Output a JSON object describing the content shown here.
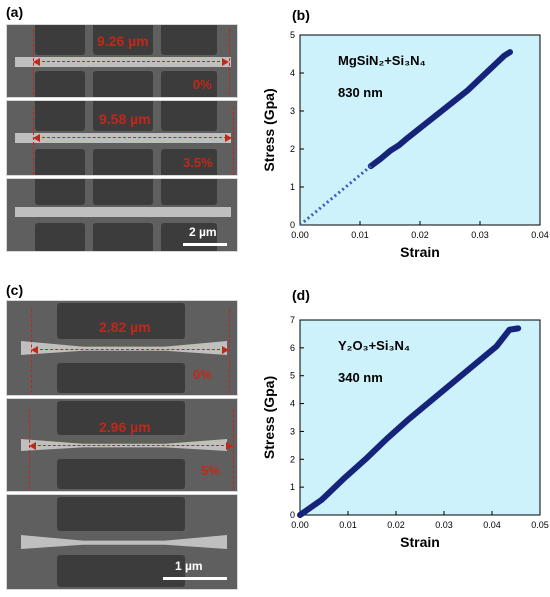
{
  "panels": {
    "a": {
      "letter": "(a)",
      "length_top": "9.26 µm",
      "strain_top": "0%",
      "length_mid": "9.58 µm",
      "strain_mid": "3.5%",
      "scale_label": "2 µm"
    },
    "c": {
      "letter": "(c)",
      "length_top": "2.82 µm",
      "strain_top": "0%",
      "length_mid": "2.96 µm",
      "strain_mid": "5%",
      "scale_label": "1 µm"
    }
  },
  "chart_data": [
    {
      "letter": "(b)",
      "type": "line",
      "annotation_material": "MgSiN₂+Si₃N₄",
      "annotation_size": "830 nm",
      "xlabel": "Strain",
      "ylabel": "Stress (Gpa)",
      "xlim": [
        0,
        0.04
      ],
      "ylim": [
        0,
        5
      ],
      "xticks": [
        "0.00",
        "0.01",
        "0.02",
        "0.03",
        "0.04"
      ],
      "yticks": [
        "0",
        "1",
        "2",
        "3",
        "4",
        "5"
      ],
      "grid": false,
      "series": [
        {
          "style": "solid",
          "color": "#16237a",
          "x": [
            0.0118,
            0.0135,
            0.015,
            0.0165,
            0.018,
            0.02,
            0.022,
            0.024,
            0.026,
            0.028,
            0.03,
            0.032,
            0.034,
            0.035
          ],
          "y": [
            1.55,
            1.75,
            1.95,
            2.1,
            2.3,
            2.55,
            2.8,
            3.05,
            3.3,
            3.55,
            3.85,
            4.15,
            4.45,
            4.55
          ]
        },
        {
          "style": "dotted",
          "color": "#3b5bc0",
          "x": [
            0.0,
            0.0118
          ],
          "y": [
            0.0,
            1.55
          ]
        }
      ]
    },
    {
      "letter": "(d)",
      "type": "line",
      "annotation_material": "Y₂O₃+Si₃N₄",
      "annotation_size": "340 nm",
      "xlabel": "Strain",
      "ylabel": "Stress (Gpa)",
      "xlim": [
        0,
        0.055
      ],
      "ylim": [
        0,
        7
      ],
      "xticks": [
        "0.00",
        "0.01",
        "0.02",
        "0.03",
        "0.04",
        "0.05"
      ],
      "yticks": [
        "0",
        "1",
        "2",
        "3",
        "4",
        "5",
        "6",
        "7"
      ],
      "grid": false,
      "series": [
        {
          "style": "solid",
          "color": "#16237a",
          "x": [
            0.0,
            0.005,
            0.01,
            0.015,
            0.02,
            0.025,
            0.03,
            0.035,
            0.04,
            0.045,
            0.048,
            0.05
          ],
          "y": [
            0.0,
            0.55,
            1.3,
            2.0,
            2.75,
            3.45,
            4.1,
            4.75,
            5.4,
            6.05,
            6.65,
            6.7
          ]
        }
      ]
    }
  ]
}
